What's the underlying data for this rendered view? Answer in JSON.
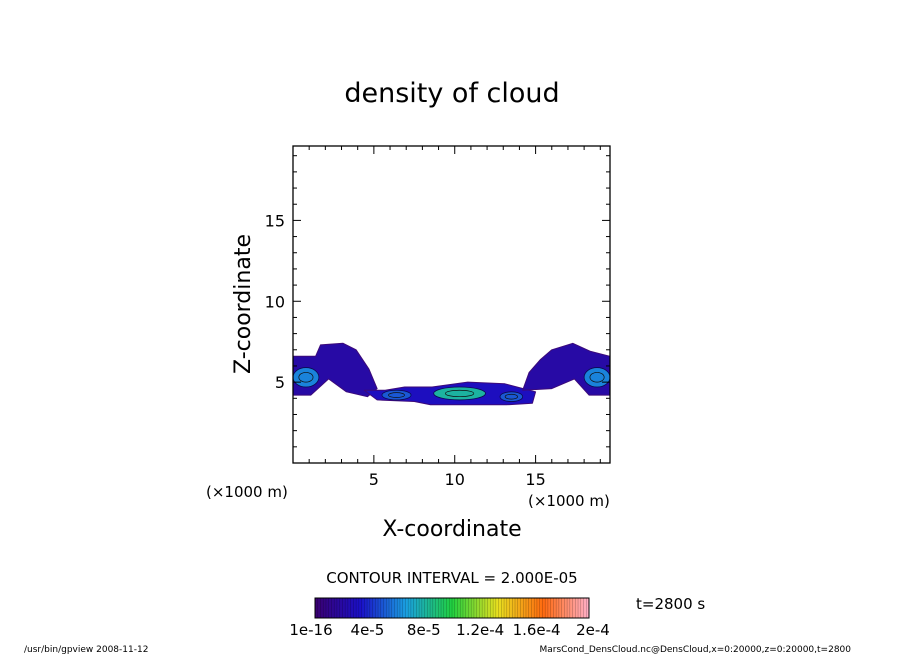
{
  "chart_data": {
    "type": "contour",
    "title": "density of cloud",
    "xlabel": "X-coordinate",
    "ylabel": "Z-coordinate",
    "x_unit": "(×1000 m)",
    "z_unit": "(×1000 m)",
    "xlim": [
      0,
      19.6
    ],
    "ylim": [
      0,
      19.6
    ],
    "x_ticks": [
      5,
      10,
      15
    ],
    "y_ticks": [
      5,
      10,
      15
    ],
    "contour_interval": "CONTOUR INTERVAL = 2.000E-05",
    "time_label": "t=2800 s",
    "colorbar": {
      "labels": [
        "1e-16",
        "4e-5",
        "8e-5",
        "1.2e-4",
        "1.6e-4",
        "2e-4"
      ],
      "min": 1e-16,
      "max": 0.0002,
      "stops": [
        "#3a0070",
        "#1a10c8",
        "#1aa0e0",
        "#20d040",
        "#e8e020",
        "#ff6a10",
        "#ffb0c8"
      ]
    },
    "regions": [
      {
        "name": "left cloud",
        "polygon": [
          [
            0,
            4.2
          ],
          [
            0,
            6.6
          ],
          [
            1.4,
            6.6
          ],
          [
            1.7,
            7.3
          ],
          [
            3.1,
            7.4
          ],
          [
            3.9,
            7.0
          ],
          [
            4.7,
            5.8
          ],
          [
            5.2,
            4.6
          ],
          [
            4.6,
            4.1
          ],
          [
            3.3,
            4.4
          ],
          [
            2.2,
            5.2
          ],
          [
            1.1,
            4.2
          ]
        ],
        "fill_level": 2e-05
      },
      {
        "name": "center cloud",
        "polygon": [
          [
            4.4,
            4.5
          ],
          [
            5.2,
            3.9
          ],
          [
            7.5,
            3.8
          ],
          [
            8.5,
            3.6
          ],
          [
            13.2,
            3.6
          ],
          [
            14.8,
            3.7
          ],
          [
            15.0,
            4.4
          ],
          [
            13.1,
            4.9
          ],
          [
            10.8,
            5.0
          ],
          [
            8.6,
            4.7
          ],
          [
            6.9,
            4.7
          ],
          [
            5.7,
            4.5
          ]
        ],
        "fill_level": 3e-05
      },
      {
        "name": "right cloud",
        "polygon": [
          [
            14.2,
            4.5
          ],
          [
            14.6,
            5.6
          ],
          [
            15.3,
            6.4
          ],
          [
            16.0,
            7.0
          ],
          [
            17.3,
            7.4
          ],
          [
            18.4,
            6.9
          ],
          [
            19.6,
            6.6
          ],
          [
            19.6,
            4.2
          ],
          [
            18.3,
            4.2
          ],
          [
            17.4,
            5.2
          ],
          [
            16.0,
            4.6
          ]
        ],
        "fill_level": 2e-05
      }
    ],
    "cores": [
      {
        "x": 0.8,
        "z": 5.3,
        "rx": 0.8,
        "rz": 0.6,
        "level": 6e-05
      },
      {
        "x": 6.4,
        "z": 4.2,
        "rx": 0.9,
        "rz": 0.3,
        "level": 5e-05
      },
      {
        "x": 10.3,
        "z": 4.3,
        "rx": 1.6,
        "rz": 0.4,
        "level": 8e-05
      },
      {
        "x": 13.5,
        "z": 4.1,
        "rx": 0.7,
        "rz": 0.3,
        "level": 5e-05
      },
      {
        "x": 18.8,
        "z": 5.3,
        "rx": 0.8,
        "rz": 0.6,
        "level": 6e-05
      }
    ]
  },
  "footer": {
    "left": "/usr/bin/gpview   2008-11-12",
    "right": "MarsCond_DensCloud.nc@DensCloud,x=0:20000,z=0:20000,t=2800"
  }
}
